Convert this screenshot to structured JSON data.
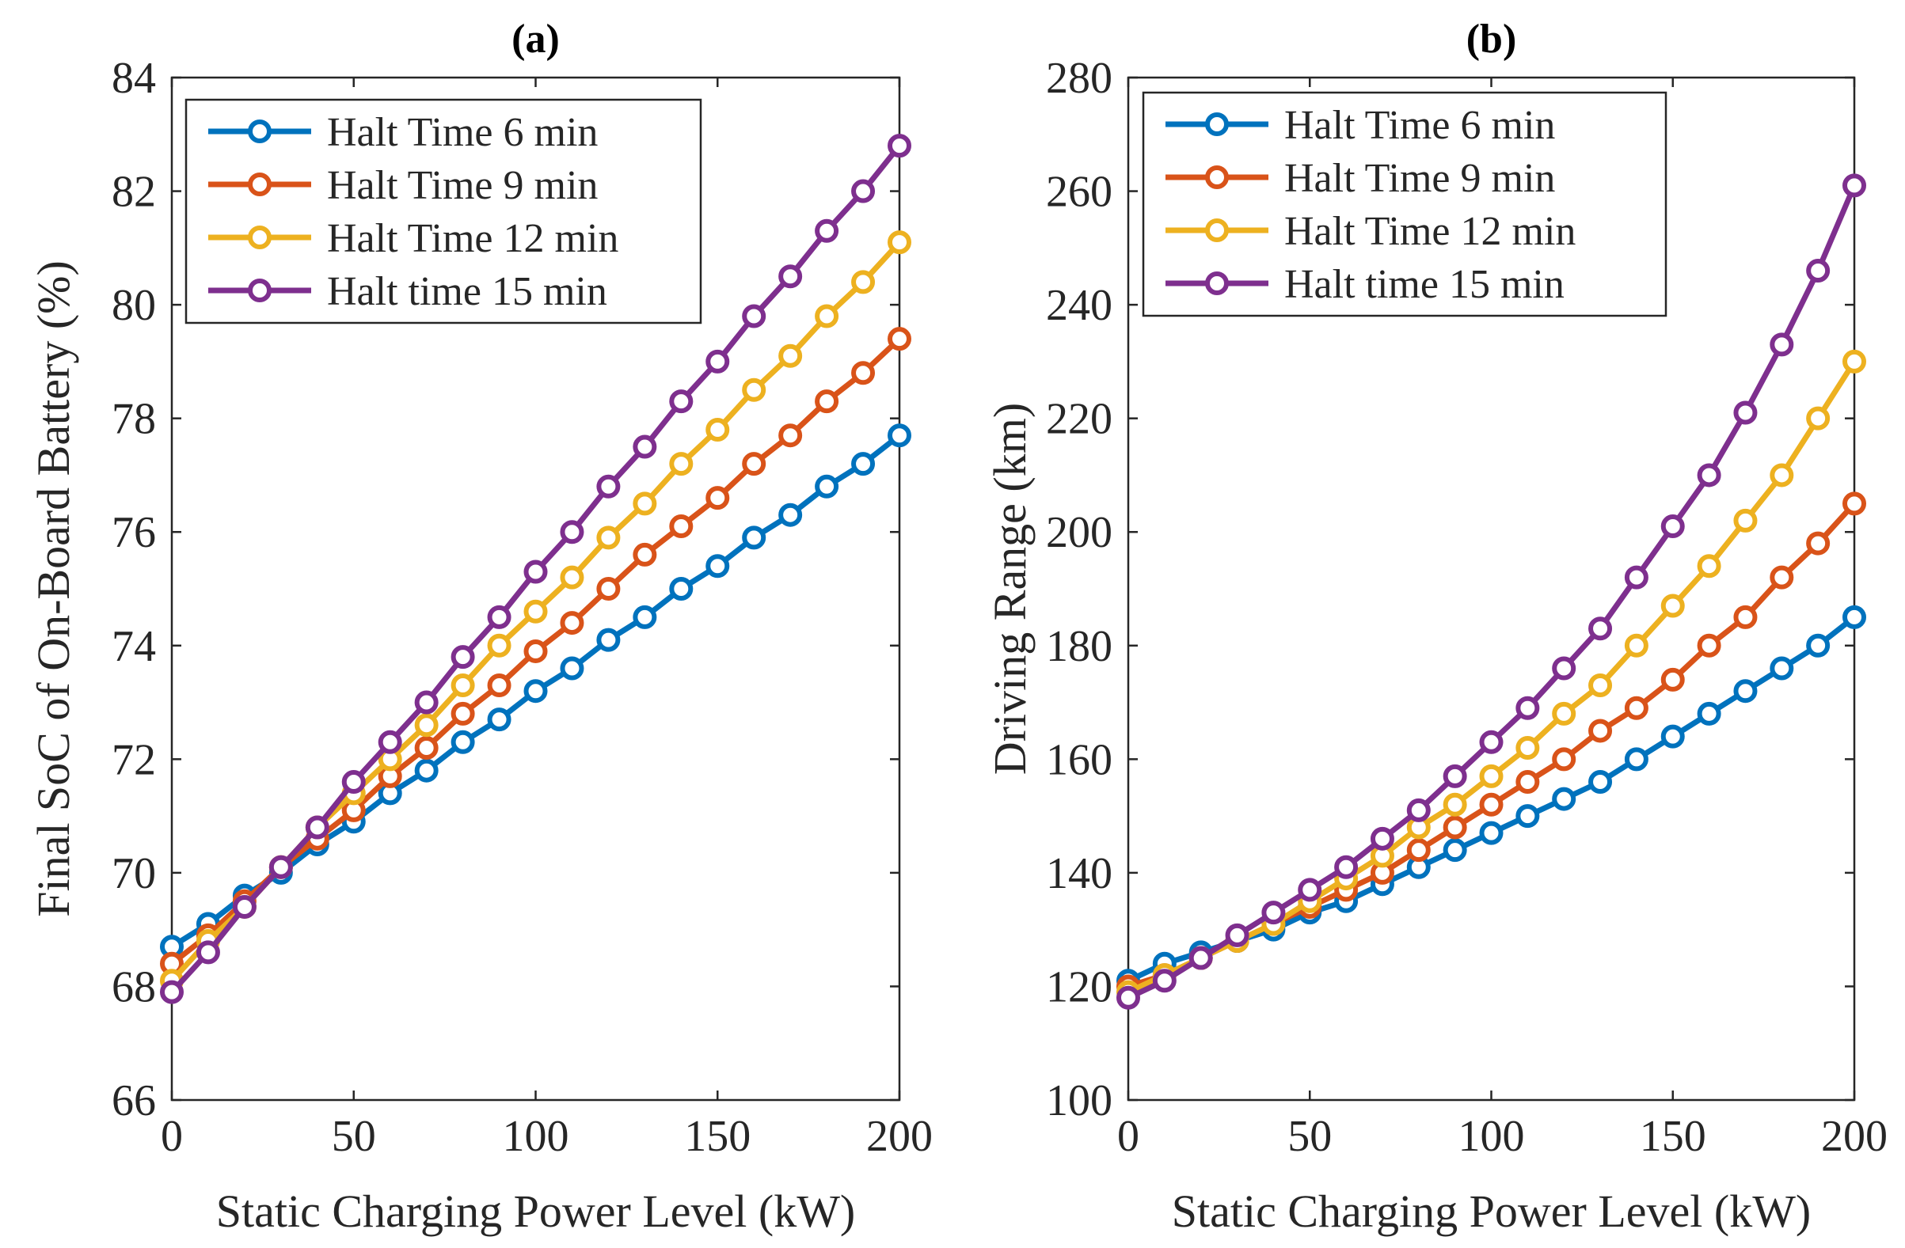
{
  "chart_data": [
    {
      "type": "line",
      "panel": "a",
      "title": "(a)",
      "xlabel": "Static Charging Power Level (kW)",
      "ylabel": "Final SoC of On-Board Battery (%)",
      "xlim": [
        0,
        200
      ],
      "ylim": [
        66,
        84
      ],
      "xticks": [
        0,
        50,
        100,
        150,
        200
      ],
      "yticks": [
        66,
        68,
        70,
        72,
        74,
        76,
        78,
        80,
        82,
        84
      ],
      "legend_position": "top-left",
      "x": [
        0,
        10,
        20,
        30,
        40,
        50,
        60,
        70,
        80,
        90,
        100,
        110,
        120,
        130,
        140,
        150,
        160,
        170,
        180,
        190,
        200
      ],
      "series": [
        {
          "name": "Halt Time 6 min",
          "color": "#0072BD",
          "values": [
            68.7,
            69.1,
            69.6,
            70.0,
            70.5,
            70.9,
            71.4,
            71.8,
            72.3,
            72.7,
            73.2,
            73.6,
            74.1,
            74.5,
            75.0,
            75.4,
            75.9,
            76.3,
            76.8,
            77.2,
            77.7
          ]
        },
        {
          "name": "Halt Time 9 min",
          "color": "#D95319",
          "values": [
            68.4,
            68.9,
            69.5,
            70.1,
            70.6,
            71.1,
            71.7,
            72.2,
            72.8,
            73.3,
            73.9,
            74.4,
            75.0,
            75.6,
            76.1,
            76.6,
            77.2,
            77.7,
            78.3,
            78.8,
            79.4
          ]
        },
        {
          "name": "Halt Time 12 min",
          "color": "#EDB120",
          "values": [
            68.1,
            68.8,
            69.4,
            70.1,
            70.8,
            71.4,
            72.0,
            72.6,
            73.3,
            74.0,
            74.6,
            75.2,
            75.9,
            76.5,
            77.2,
            77.8,
            78.5,
            79.1,
            79.8,
            80.4,
            81.1
          ]
        },
        {
          "name": "Halt time 15 min",
          "color": "#7E2F8E",
          "values": [
            67.9,
            68.6,
            69.4,
            70.1,
            70.8,
            71.6,
            72.3,
            73.0,
            73.8,
            74.5,
            75.3,
            76.0,
            76.8,
            77.5,
            78.3,
            79.0,
            79.8,
            80.5,
            81.3,
            82.0,
            82.8
          ]
        }
      ]
    },
    {
      "type": "line",
      "panel": "b",
      "title": "(b)",
      "xlabel": "Static Charging Power Level (kW)",
      "ylabel": "Driving Range (km)",
      "xlim": [
        0,
        200
      ],
      "ylim": [
        100,
        280
      ],
      "xticks": [
        0,
        50,
        100,
        150,
        200
      ],
      "yticks": [
        100,
        120,
        140,
        160,
        180,
        200,
        220,
        240,
        260,
        280
      ],
      "legend_position": "top-left",
      "x": [
        0,
        10,
        20,
        30,
        40,
        50,
        60,
        70,
        80,
        90,
        100,
        110,
        120,
        130,
        140,
        150,
        160,
        170,
        180,
        190,
        200
      ],
      "series": [
        {
          "name": "Halt Time 6 min",
          "color": "#0072BD",
          "values": [
            121,
            124,
            126,
            128,
            130,
            133,
            135,
            138,
            141,
            144,
            147,
            150,
            153,
            156,
            160,
            164,
            168,
            172,
            176,
            180,
            185
          ]
        },
        {
          "name": "Halt Time 9 min",
          "color": "#D95319",
          "values": [
            120,
            122,
            125,
            128,
            131,
            134,
            137,
            140,
            144,
            148,
            152,
            156,
            160,
            165,
            169,
            174,
            180,
            185,
            192,
            198,
            205
          ]
        },
        {
          "name": "Halt Time 12 min",
          "color": "#EDB120",
          "values": [
            119,
            122,
            125,
            128,
            131,
            135,
            139,
            143,
            148,
            152,
            157,
            162,
            168,
            173,
            180,
            187,
            194,
            202,
            210,
            220,
            230
          ]
        },
        {
          "name": "Halt time 15 min",
          "color": "#7E2F8E",
          "values": [
            118,
            121,
            125,
            129,
            133,
            137,
            141,
            146,
            151,
            157,
            163,
            169,
            176,
            183,
            192,
            201,
            210,
            221,
            233,
            246,
            261
          ]
        }
      ]
    }
  ]
}
